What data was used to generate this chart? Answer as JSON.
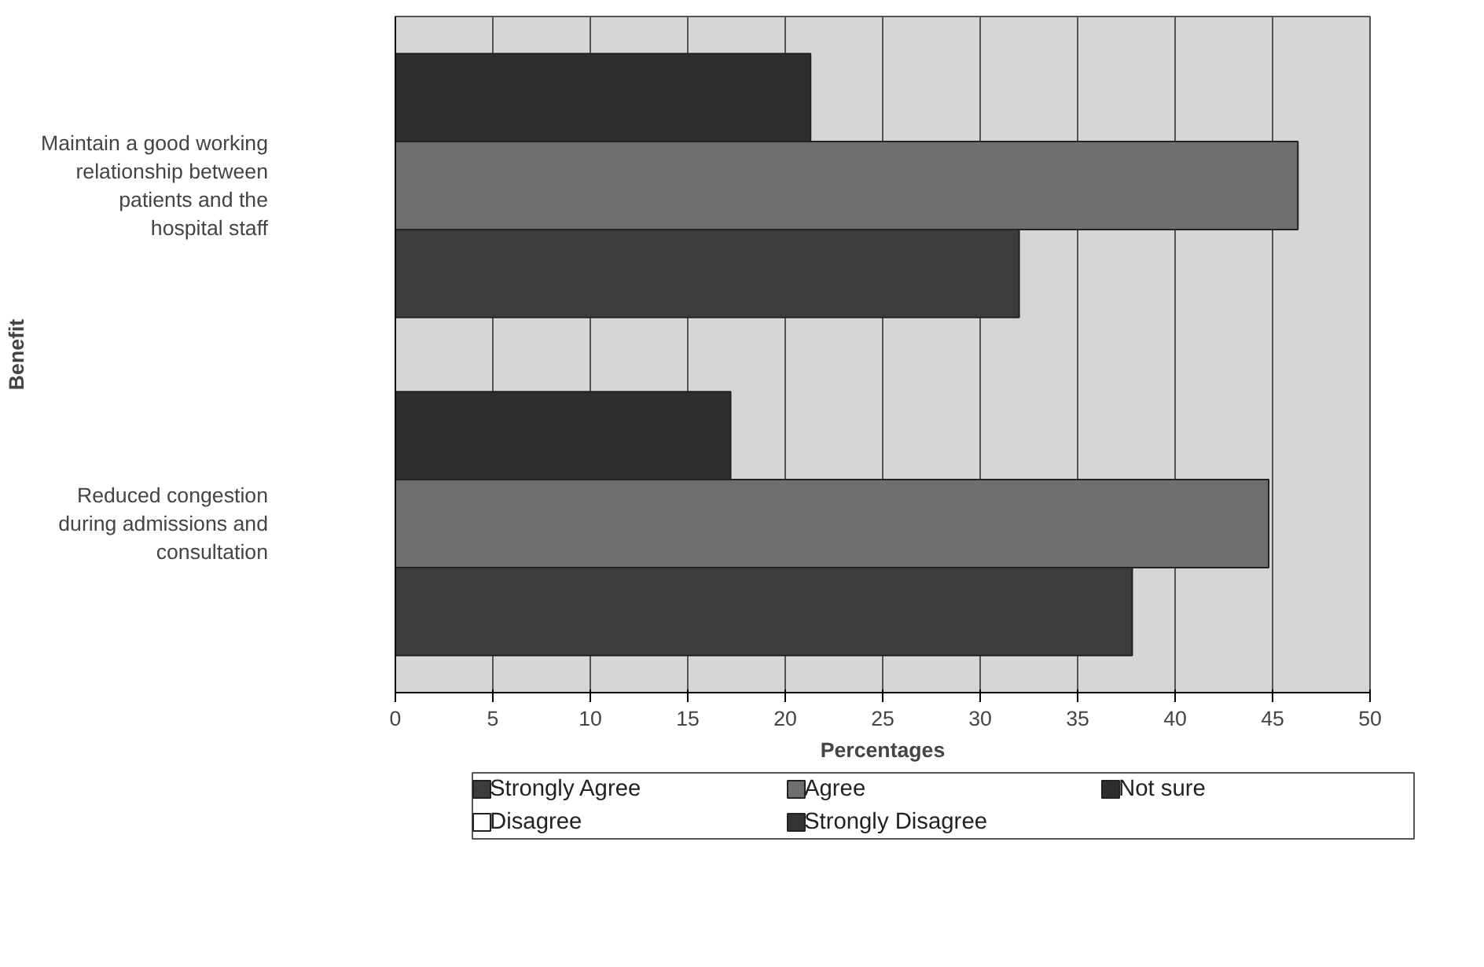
{
  "chart_data": {
    "type": "bar",
    "orientation": "horizontal",
    "xlabel": "Percentages",
    "ylabel": "Benefit",
    "categories": [
      "Maintain a good working relationship between patients and the hospital staff",
      "Reduced congestion during admissions and consultation"
    ],
    "series": [
      {
        "name": "Strongly Agree",
        "color": "#3c3c3c",
        "values": [
          32.0,
          37.8
        ]
      },
      {
        "name": "Agree",
        "color": "#6e6e6e",
        "values": [
          46.3,
          44.8
        ]
      },
      {
        "name": "Not sure",
        "color": "#2e2e2e",
        "values": [
          21.3,
          17.2
        ]
      },
      {
        "name": "Disagree",
        "color": "#ffffff",
        "values": [
          null,
          null
        ]
      },
      {
        "name": "Strongly Disagree",
        "color": "#333333",
        "values": [
          null,
          null
        ]
      }
    ],
    "xlim": [
      0,
      50
    ],
    "xticks": [
      0,
      5,
      10,
      15,
      20,
      25,
      30,
      35,
      40,
      45,
      50
    ],
    "grid": "x",
    "legend": "bottom"
  }
}
